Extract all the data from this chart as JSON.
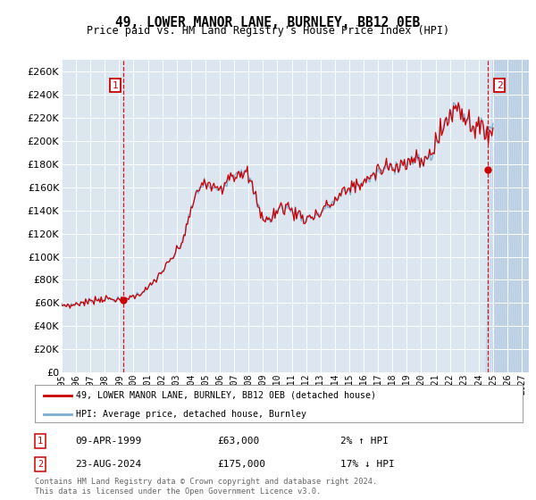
{
  "title": "49, LOWER MANOR LANE, BURNLEY, BB12 0EB",
  "subtitle": "Price paid vs. HM Land Registry's House Price Index (HPI)",
  "ylim": [
    0,
    270000
  ],
  "yticks": [
    0,
    20000,
    40000,
    60000,
    80000,
    100000,
    120000,
    140000,
    160000,
    180000,
    200000,
    220000,
    240000,
    260000
  ],
  "background_color": "#dce6f1",
  "hatch_color": "#c5d6e8",
  "grid_color": "#ffffff",
  "hpi_color": "#7aadd4",
  "price_color": "#cc0000",
  "transaction1_date": "09-APR-1999",
  "transaction1_price": 63000,
  "transaction1_hpi_pct": "2% ↑ HPI",
  "transaction2_date": "23-AUG-2024",
  "transaction2_price": 175000,
  "transaction2_hpi_pct": "17% ↓ HPI",
  "legend_label1": "49, LOWER MANOR LANE, BURNLEY, BB12 0EB (detached house)",
  "legend_label2": "HPI: Average price, detached house, Burnley",
  "footnote": "Contains HM Land Registry data © Crown copyright and database right 2024.\nThis data is licensed under the Open Government Licence v3.0.",
  "marker1_x": 1999.27,
  "marker1_y": 63000,
  "marker2_x": 2024.64,
  "marker2_y": 175000,
  "vline1_x": 1999.27,
  "vline2_x": 2024.64,
  "xlim_start": 1995.0,
  "xlim_end": 2027.5,
  "hatch_start": 2025.0
}
